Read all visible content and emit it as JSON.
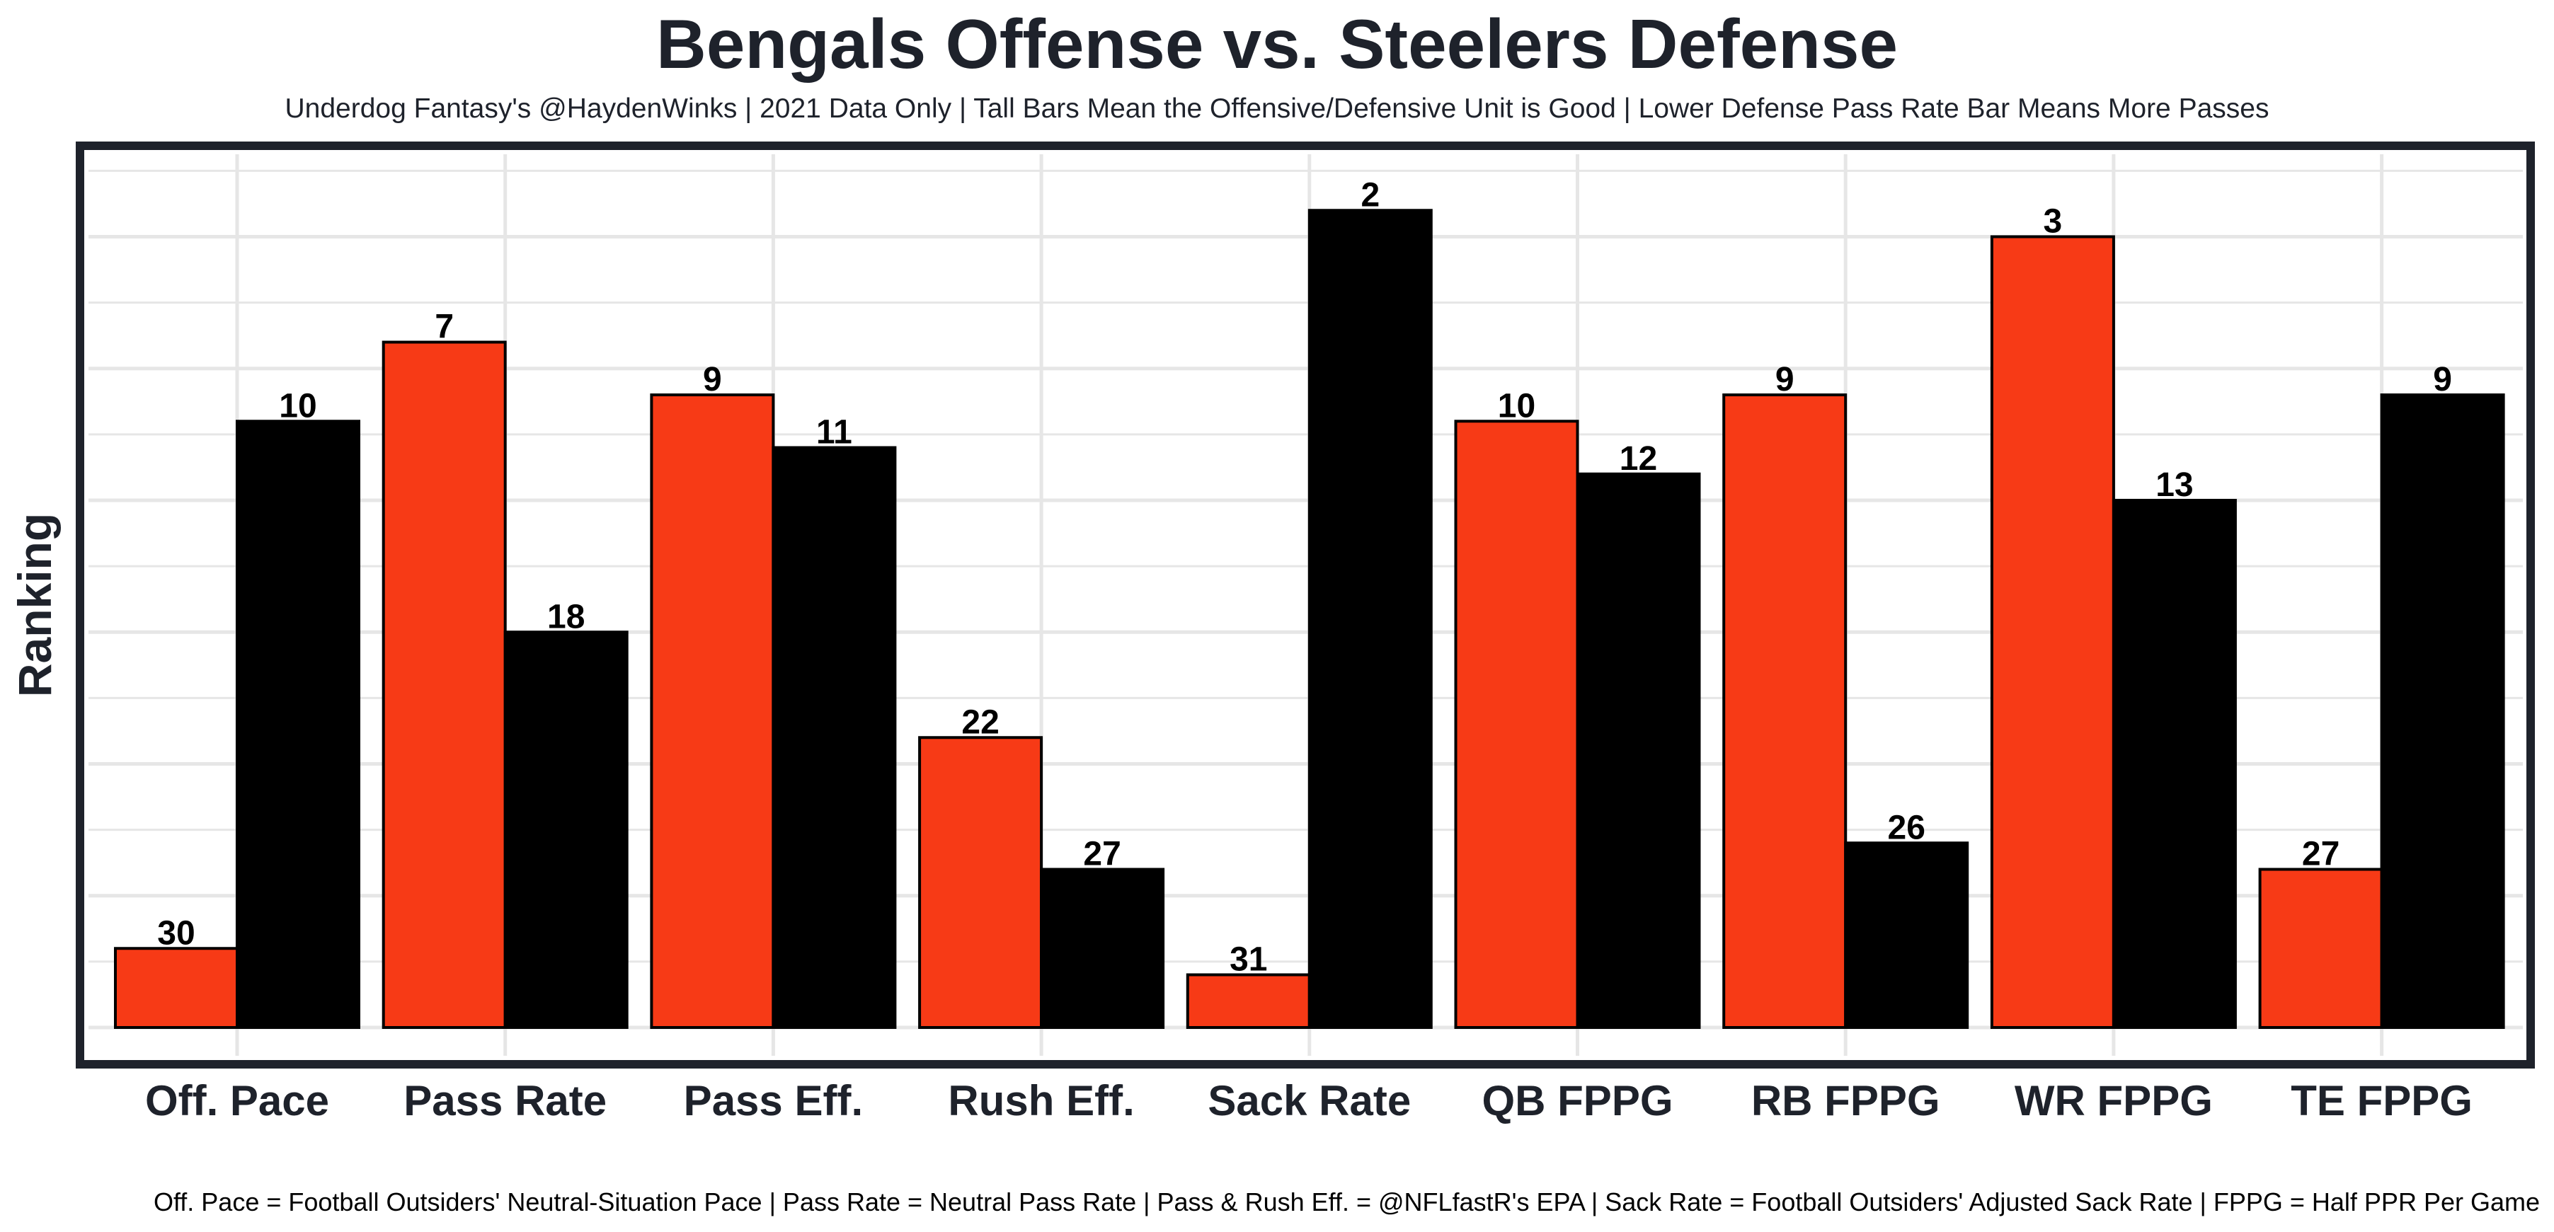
{
  "title": "Bengals Offense vs. Steelers Defense",
  "subtitle": "Underdog Fantasy's @HaydenWinks | 2021 Data Only | Tall Bars Mean the Offensive/Defensive Unit is Good | Lower Defense Pass Rate Bar Means More Passes",
  "caption": "Off. Pace = Football Outsiders' Neutral-Situation Pace | Pass Rate = Neutral Pass Rate | Pass & Rush Eff. = @NFLfastR's EPA | Sack Rate = Football Outsiders' Adjusted Sack Rate | FPPG = Half PPR Per Game",
  "colors": {
    "offense": "#f73a16",
    "defense": "#000000",
    "frame": "#1e222b",
    "grid": "#e6e6e6"
  },
  "chart_data": {
    "type": "bar",
    "title": "Bengals Offense vs. Steelers Defense",
    "xlabel": "",
    "ylabel": "Ranking",
    "rank_scale": "bar height = 33 - ranking (rank 1 is tallest)",
    "categories": [
      "Off. Pace",
      "Pass Rate",
      "Pass Eff.",
      "Rush Eff.",
      "Sack Rate",
      "QB FPPG",
      "RB FPPG",
      "WR FPPG",
      "TE FPPG"
    ],
    "series": [
      {
        "name": "Bengals Offense",
        "values": [
          30,
          7,
          9,
          22,
          31,
          10,
          9,
          3,
          27
        ]
      },
      {
        "name": "Steelers Defense",
        "values": [
          10,
          18,
          11,
          27,
          2,
          12,
          26,
          13,
          9
        ]
      }
    ],
    "ylim": [
      0,
      33
    ],
    "grid": true,
    "legend": "none"
  }
}
